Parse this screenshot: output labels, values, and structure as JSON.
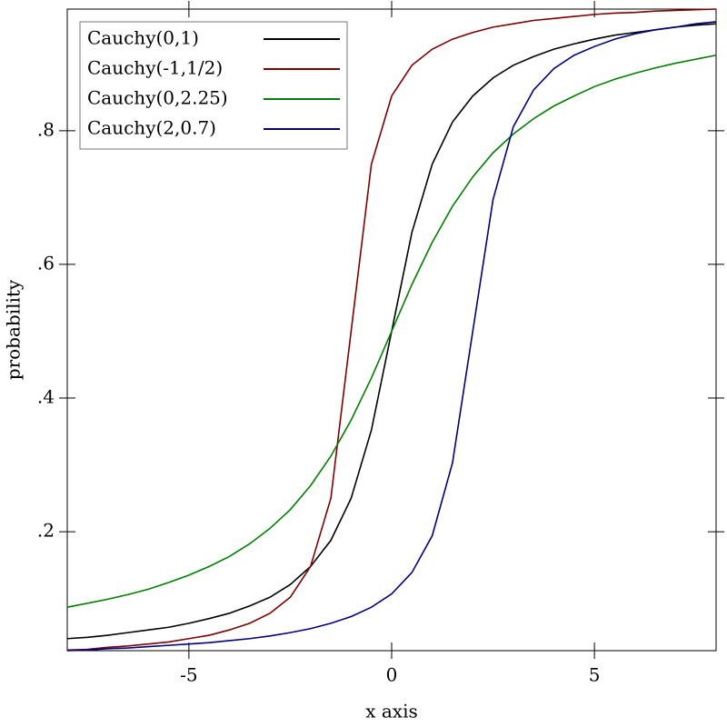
{
  "chart_data": {
    "type": "line",
    "xlabel": "x axis",
    "ylabel": "probability",
    "x": [
      -8,
      -7.5,
      -7,
      -6.5,
      -6,
      -5.5,
      -5,
      -4.5,
      -4,
      -3.5,
      -3,
      -2.5,
      -2,
      -1.5,
      -1,
      -0.5,
      0,
      0.5,
      1,
      1.5,
      2,
      2.5,
      3,
      3.5,
      4,
      4.5,
      5,
      5.5,
      6,
      6.5,
      7,
      7.5,
      8
    ],
    "series": [
      {
        "name": "Cauchy(0,1)",
        "color": "#000000",
        "values": [
          0.04,
          0.042,
          0.045,
          0.049,
          0.053,
          0.057,
          0.063,
          0.07,
          0.078,
          0.089,
          0.102,
          0.121,
          0.148,
          0.187,
          0.25,
          0.352,
          0.5,
          0.648,
          0.75,
          0.813,
          0.852,
          0.879,
          0.898,
          0.911,
          0.922,
          0.93,
          0.937,
          0.943,
          0.947,
          0.951,
          0.955,
          0.958,
          0.96
        ]
      },
      {
        "name": "Cauchy(-1,1/2)",
        "color": "#800000",
        "values": [
          0.023,
          0.024,
          0.027,
          0.029,
          0.032,
          0.035,
          0.04,
          0.045,
          0.053,
          0.063,
          0.078,
          0.102,
          0.148,
          0.25,
          0.5,
          0.75,
          0.852,
          0.898,
          0.922,
          0.937,
          0.947,
          0.955,
          0.96,
          0.965,
          0.968,
          0.971,
          0.974,
          0.976,
          0.977,
          0.979,
          0.98,
          0.981,
          0.982
        ]
      },
      {
        "name": "Cauchy(0,2.25)",
        "color": "#008000",
        "values": [
          0.087,
          0.093,
          0.099,
          0.106,
          0.114,
          0.124,
          0.135,
          0.148,
          0.163,
          0.182,
          0.205,
          0.233,
          0.269,
          0.313,
          0.367,
          0.43,
          0.5,
          0.57,
          0.633,
          0.687,
          0.731,
          0.767,
          0.795,
          0.818,
          0.837,
          0.852,
          0.866,
          0.877,
          0.886,
          0.894,
          0.901,
          0.907,
          0.913
        ]
      },
      {
        "name": "Cauchy(2,0.7)",
        "color": "#000080",
        "values": [
          0.022,
          0.023,
          0.025,
          0.026,
          0.028,
          0.03,
          0.032,
          0.034,
          0.037,
          0.04,
          0.044,
          0.049,
          0.055,
          0.063,
          0.073,
          0.087,
          0.107,
          0.139,
          0.194,
          0.303,
          0.5,
          0.697,
          0.806,
          0.861,
          0.893,
          0.913,
          0.926,
          0.937,
          0.945,
          0.951,
          0.955,
          0.96,
          0.963
        ]
      }
    ],
    "xlim": [
      -8,
      8
    ],
    "xticks": [
      -5,
      0,
      5
    ],
    "ylim": [
      0.022,
      0.982
    ],
    "yticks": [
      {
        "value": 0.2,
        "label": ".2"
      },
      {
        "value": 0.4,
        "label": ".4"
      },
      {
        "value": 0.6,
        "label": ".6"
      },
      {
        "value": 0.8,
        "label": ".8"
      }
    ],
    "legend": "top-left"
  }
}
